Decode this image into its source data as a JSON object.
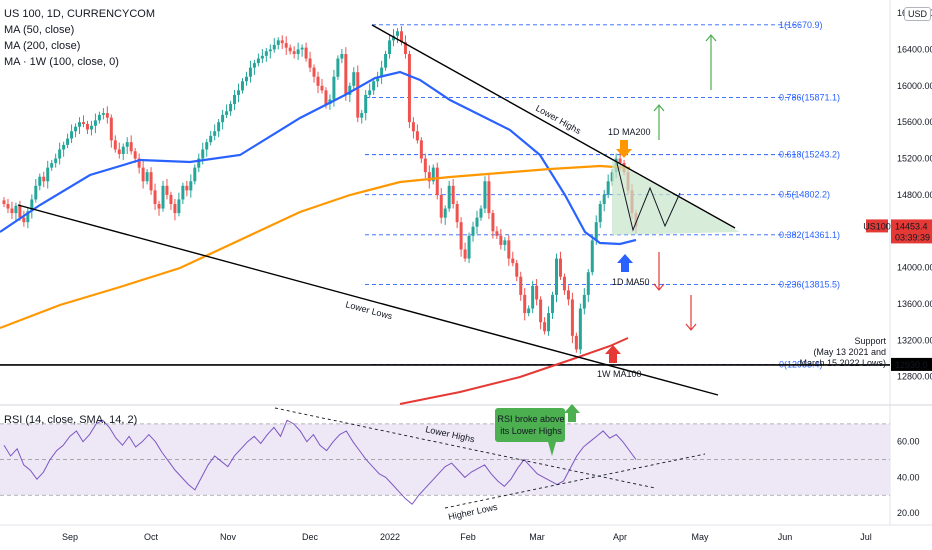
{
  "legend": {
    "symbol": "US 100, 1D, CURRENCYCOM",
    "ma50": "MA (50, close)",
    "ma200": "MA (200, close)",
    "ma1w": "MA · 1W (100, close, 0)",
    "rsi": "RSI (14, close, SMA, 14, 2)"
  },
  "currency_badge": "USD",
  "colors": {
    "up": "#26a69a",
    "down": "#ef5350",
    "ma50": "#2962ff",
    "ma200": "#ff9800",
    "ma1w": "#e53935",
    "fib": "#2962ff",
    "rsi": "#7e57c2",
    "rsi_bg": "#ede7f6",
    "green_arrow": "#4caf50",
    "red_arrow": "#e53935",
    "triangle": "#c8e6c9"
  },
  "chart_data": {
    "type": "candlestick",
    "x_ticks": [
      "Sep",
      "Oct",
      "Nov",
      "Dec",
      "2022",
      "Feb",
      "Mar",
      "Apr",
      "May",
      "Jun",
      "Jul"
    ],
    "price_ticks": [
      12800,
      13200,
      13600,
      14000,
      14400,
      14800,
      15200,
      15600,
      16000,
      16400,
      16800
    ],
    "price_ylim": [
      12500,
      16900
    ],
    "rsi_ticks": [
      20,
      40,
      60
    ],
    "rsi_ylim": [
      15,
      80
    ],
    "fib_levels": [
      {
        "label": "1(16670.9)",
        "value": 16670.9
      },
      {
        "label": "0.786(15871.1)",
        "value": 15871.1
      },
      {
        "label": "0.618(15243.2)",
        "value": 15243.2
      },
      {
        "label": "0.5(14802.2)",
        "value": 14802.2
      },
      {
        "label": "0.382(14361.1)",
        "value": 14361.1
      },
      {
        "label": "0.236(13815.5)",
        "value": 13815.5
      },
      {
        "label": "0(12933.4)",
        "value": 12933.4
      }
    ],
    "support_line": 12930.0,
    "last_price": {
      "symbol": "US100",
      "value": "14453.4",
      "countdown": "03:39:39"
    },
    "support_label": "12930.0",
    "annotations": {
      "lower_highs": "Lower Highs",
      "lower_lows": "Lower Lows",
      "ma200_1d": "1D MA200",
      "ma50_1d": "1D MA50",
      "ma100_1w": "1W MA100",
      "support_line1": "Support",
      "support_line2": "(May 13 2021 and",
      "support_line3": "March 15 2022 Lows)",
      "rsi_lower_highs": "Lower Highs",
      "rsi_higher_lows": "Higher Lows",
      "rsi_callout_1": "RSI broke above",
      "rsi_callout_2": "its Lower Highs"
    },
    "series": [
      {
        "name": "MA (50, close)"
      },
      {
        "name": "MA (200, close)"
      },
      {
        "name": "MA · 1W (100, close, 0)"
      },
      {
        "name": "RSI (14, close, SMA, 14, 2)"
      }
    ],
    "closes": [
      14700,
      14650,
      14600,
      14680,
      14550,
      14500,
      14620,
      14750,
      14900,
      15000,
      14950,
      15100,
      15150,
      15200,
      15300,
      15350,
      15420,
      15500,
      15550,
      15600,
      15580,
      15520,
      15560,
      15620,
      15680,
      15700,
      15650,
      15400,
      15300,
      15250,
      15330,
      15380,
      15280,
      15200,
      15100,
      14950,
      15050,
      14850,
      14700,
      14650,
      14900,
      14800,
      14700,
      14600,
      14750,
      14900,
      14850,
      14950,
      15100,
      15200,
      15300,
      15380,
      15450,
      15500,
      15600,
      15680,
      15720,
      15800,
      15900,
      15950,
      16050,
      16100,
      16200,
      16250,
      16300,
      16330,
      16380,
      16400,
      16450,
      16500,
      16470,
      16420,
      16380,
      16350,
      16400,
      16420,
      16300,
      16200,
      16100,
      16000,
      15950,
      15800,
      15850,
      16100,
      16300,
      16350,
      15900,
      16000,
      16150,
      15650,
      15700,
      15900,
      15950,
      16050,
      16100,
      16200,
      16350,
      16500,
      16550,
      16600,
      16480,
      16350,
      15600,
      15500,
      15400,
      15200,
      15050,
      14950,
      15100,
      14800,
      14550,
      14650,
      14900,
      14700,
      14500,
      14200,
      14100,
      14350,
      14450,
      14550,
      14650,
      14950,
      14600,
      14400,
      14350,
      14250,
      14300,
      14100,
      14050,
      13900,
      13700,
      13500,
      13550,
      13800,
      13650,
      13400,
      13300,
      13500,
      13700,
      14100,
      13900,
      13750,
      13650,
      13250,
      13100,
      13550,
      13700,
      13950,
      14300,
      14500,
      14700,
      14800,
      14950,
      15050,
      15200,
      15150,
      15050,
      14850,
      14600,
      14453
    ]
  }
}
